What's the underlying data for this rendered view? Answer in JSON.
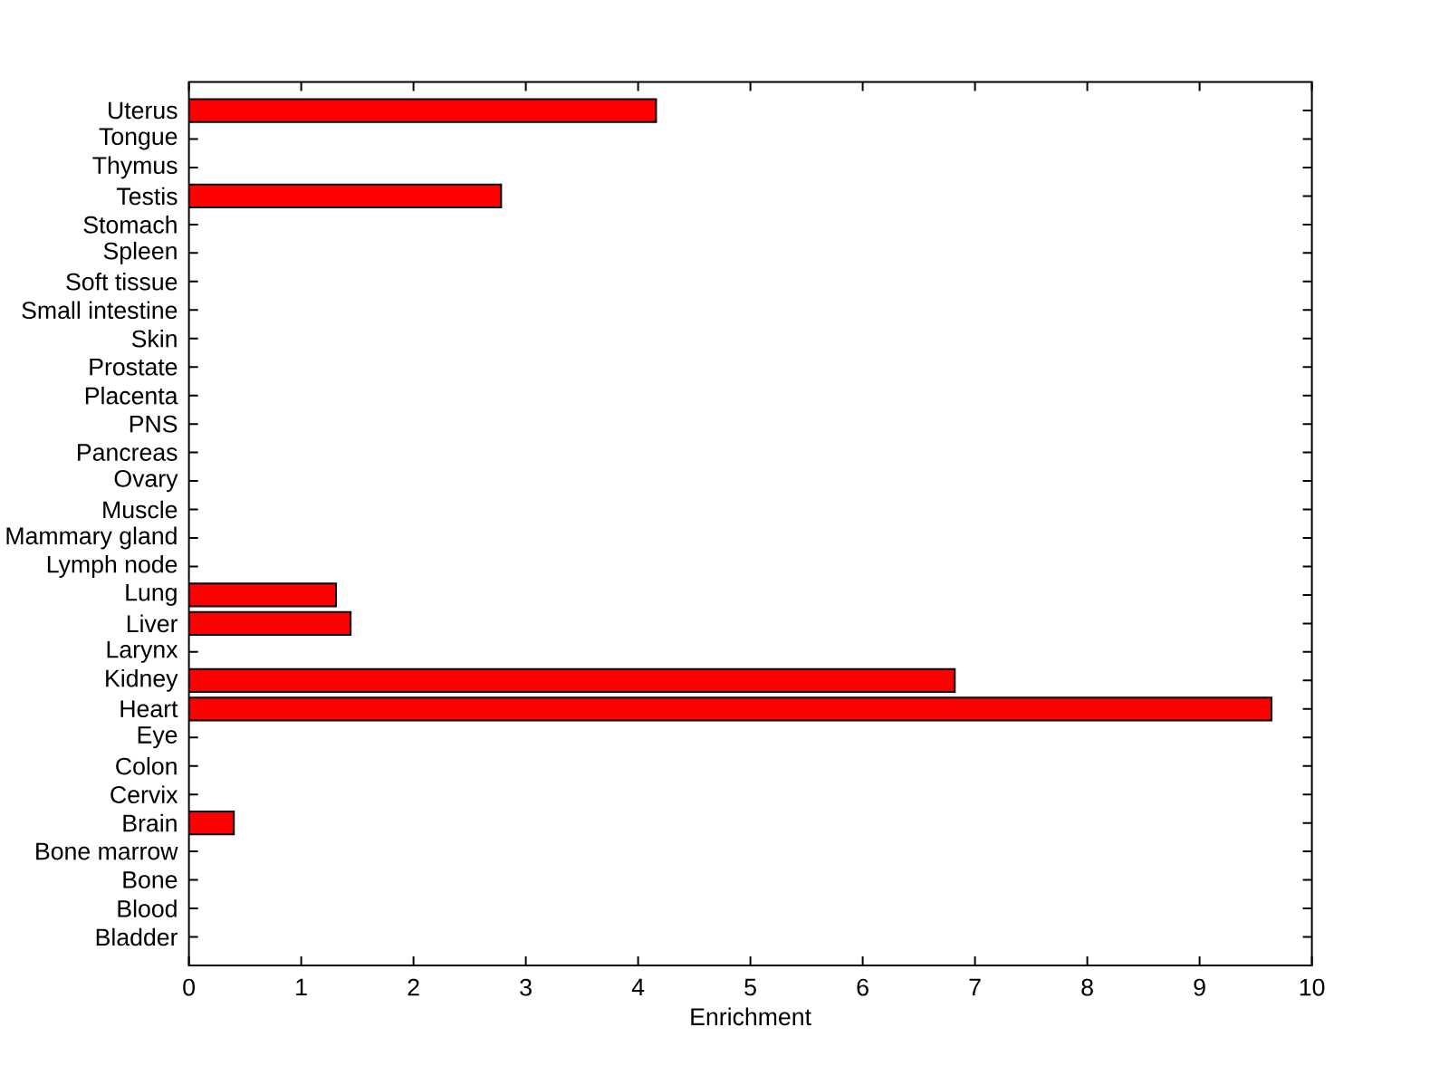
{
  "chart_data": {
    "type": "bar",
    "orientation": "horizontal",
    "xlabel": "Enrichment",
    "categories": [
      "Uterus",
      "Tongue",
      "Thymus",
      "Testis",
      "Stomach",
      "Spleen",
      "Soft tissue",
      "Small intestine",
      "Skin",
      "Prostate",
      "Placenta",
      "PNS",
      "Pancreas",
      "Ovary",
      "Muscle",
      "Mammary gland",
      "Lymph node",
      "Lung",
      "Liver",
      "Larynx",
      "Kidney",
      "Heart",
      "Eye",
      "Colon",
      "Cervix",
      "Brain",
      "Bone marrow",
      "Bone",
      "Blood",
      "Bladder"
    ],
    "values": [
      4.16,
      null,
      null,
      2.78,
      null,
      null,
      null,
      null,
      null,
      null,
      null,
      null,
      null,
      null,
      null,
      null,
      null,
      1.31,
      1.44,
      null,
      6.82,
      9.64,
      null,
      null,
      null,
      0.4,
      null,
      null,
      null,
      null
    ],
    "color": "#ff0000",
    "xlim": [
      0,
      10
    ],
    "xticks": [
      0,
      1,
      2,
      3,
      4,
      5,
      6,
      7,
      8,
      9,
      10
    ]
  }
}
